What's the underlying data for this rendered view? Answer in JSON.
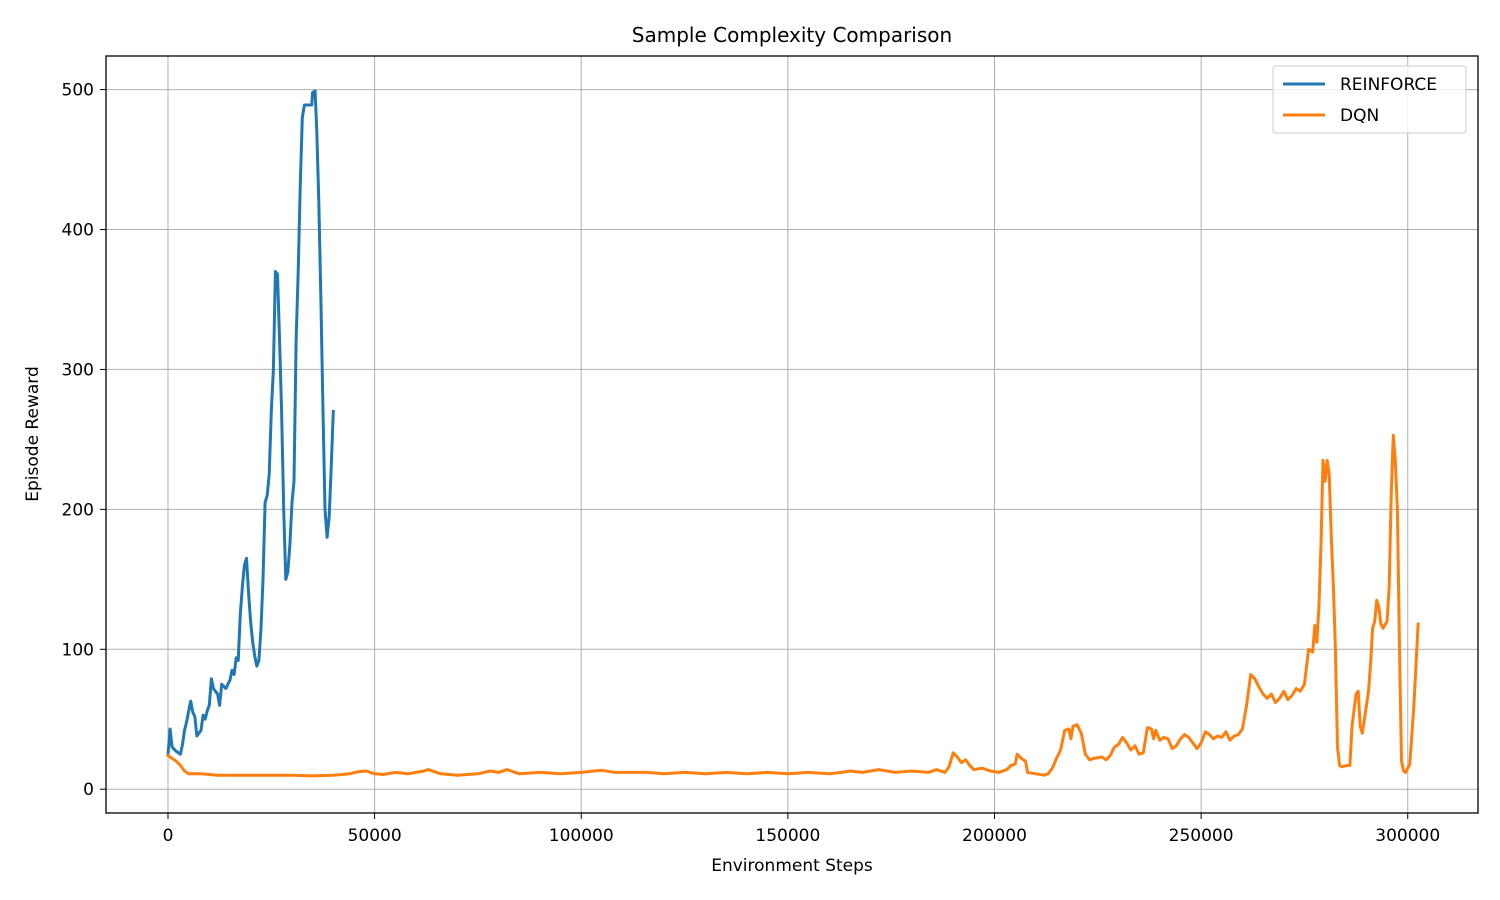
{
  "chart_data": {
    "type": "line",
    "title": "Sample Complexity Comparison",
    "xlabel": "Environment Steps",
    "ylabel": "Episode Reward",
    "xlim": [
      -15000,
      317000
    ],
    "ylim": [
      -17,
      524
    ],
    "xticks": [
      0,
      50000,
      100000,
      150000,
      200000,
      250000,
      300000
    ],
    "yticks": [
      0,
      100,
      200,
      300,
      400,
      500
    ],
    "grid": true,
    "legend_position": "top-right",
    "series": [
      {
        "name": "REINFORCE",
        "color": "#1f77b4",
        "points": [
          [
            0,
            25
          ],
          [
            500,
            43
          ],
          [
            1000,
            30
          ],
          [
            2000,
            27
          ],
          [
            3000,
            25
          ],
          [
            3500,
            32
          ],
          [
            4000,
            42
          ],
          [
            4500,
            48
          ],
          [
            5000,
            56
          ],
          [
            5500,
            63
          ],
          [
            6000,
            55
          ],
          [
            6500,
            52
          ],
          [
            7000,
            38
          ],
          [
            8000,
            42
          ],
          [
            8500,
            53
          ],
          [
            9000,
            50
          ],
          [
            9500,
            56
          ],
          [
            10000,
            60
          ],
          [
            10500,
            79
          ],
          [
            11000,
            72
          ],
          [
            11500,
            70
          ],
          [
            12000,
            68
          ],
          [
            12500,
            60
          ],
          [
            13000,
            75
          ],
          [
            14000,
            72
          ],
          [
            15000,
            78
          ],
          [
            15500,
            85
          ],
          [
            16000,
            82
          ],
          [
            16500,
            94
          ],
          [
            17000,
            92
          ],
          [
            17500,
            125
          ],
          [
            18000,
            145
          ],
          [
            18500,
            160
          ],
          [
            19000,
            165
          ],
          [
            19500,
            140
          ],
          [
            20000,
            120
          ],
          [
            20500,
            105
          ],
          [
            21000,
            95
          ],
          [
            21500,
            88
          ],
          [
            22000,
            92
          ],
          [
            22500,
            115
          ],
          [
            23000,
            150
          ],
          [
            23500,
            205
          ],
          [
            24000,
            210
          ],
          [
            24500,
            225
          ],
          [
            25000,
            270
          ],
          [
            25500,
            300
          ],
          [
            26000,
            370
          ],
          [
            26500,
            368
          ],
          [
            27000,
            320
          ],
          [
            27500,
            270
          ],
          [
            28000,
            200
          ],
          [
            28500,
            150
          ],
          [
            29000,
            155
          ],
          [
            29500,
            175
          ],
          [
            30000,
            205
          ],
          [
            30500,
            220
          ],
          [
            31000,
            320
          ],
          [
            31500,
            370
          ],
          [
            32000,
            430
          ],
          [
            32500,
            480
          ],
          [
            33000,
            489
          ],
          [
            34000,
            489
          ],
          [
            34800,
            489
          ],
          [
            35000,
            498
          ],
          [
            35600,
            499
          ],
          [
            36000,
            470
          ],
          [
            36500,
            420
          ],
          [
            37000,
            350
          ],
          [
            37500,
            270
          ],
          [
            38000,
            200
          ],
          [
            38500,
            180
          ],
          [
            39000,
            195
          ],
          [
            39500,
            230
          ],
          [
            40000,
            270
          ]
        ]
      },
      {
        "name": "DQN",
        "color": "#ff7f0e",
        "points": [
          [
            0,
            24
          ],
          [
            2000,
            20
          ],
          [
            3000,
            17
          ],
          [
            4000,
            13
          ],
          [
            5000,
            11
          ],
          [
            8000,
            11
          ],
          [
            12000,
            10
          ],
          [
            15000,
            10
          ],
          [
            20000,
            10
          ],
          [
            25000,
            10
          ],
          [
            30000,
            10
          ],
          [
            35000,
            9.5
          ],
          [
            40000,
            10
          ],
          [
            42000,
            10.5
          ],
          [
            44000,
            11
          ],
          [
            46000,
            12.5
          ],
          [
            48000,
            13
          ],
          [
            50000,
            11
          ],
          [
            52000,
            10.5
          ],
          [
            55000,
            12
          ],
          [
            58000,
            11
          ],
          [
            60000,
            12
          ],
          [
            62000,
            13
          ],
          [
            63000,
            14
          ],
          [
            64000,
            13
          ],
          [
            66000,
            11
          ],
          [
            70000,
            10
          ],
          [
            75000,
            11
          ],
          [
            78000,
            13
          ],
          [
            80000,
            12
          ],
          [
            82000,
            14
          ],
          [
            85000,
            11
          ],
          [
            90000,
            12
          ],
          [
            95000,
            11
          ],
          [
            100000,
            12
          ],
          [
            103000,
            13
          ],
          [
            105000,
            13.5
          ],
          [
            108000,
            12
          ],
          [
            112000,
            12
          ],
          [
            116000,
            12
          ],
          [
            120000,
            11
          ],
          [
            125000,
            12
          ],
          [
            130000,
            11
          ],
          [
            135000,
            12
          ],
          [
            140000,
            11
          ],
          [
            145000,
            12
          ],
          [
            150000,
            11
          ],
          [
            155000,
            12
          ],
          [
            160000,
            11
          ],
          [
            163000,
            12
          ],
          [
            165000,
            13
          ],
          [
            168000,
            12
          ],
          [
            172000,
            14
          ],
          [
            176000,
            12
          ],
          [
            180000,
            13
          ],
          [
            184000,
            12
          ],
          [
            186000,
            14
          ],
          [
            188000,
            12
          ],
          [
            189000,
            16
          ],
          [
            190000,
            26
          ],
          [
            191000,
            23
          ],
          [
            192000,
            19
          ],
          [
            193000,
            21
          ],
          [
            194000,
            17
          ],
          [
            195000,
            14
          ],
          [
            197000,
            15
          ],
          [
            199000,
            13
          ],
          [
            201000,
            12
          ],
          [
            203000,
            14
          ],
          [
            204000,
            17
          ],
          [
            205000,
            18
          ],
          [
            205500,
            25
          ],
          [
            206500,
            22
          ],
          [
            207500,
            20
          ],
          [
            208000,
            12
          ],
          [
            210000,
            11
          ],
          [
            212000,
            10
          ],
          [
            213000,
            11
          ],
          [
            214000,
            15
          ],
          [
            215000,
            22
          ],
          [
            216000,
            28
          ],
          [
            217000,
            42
          ],
          [
            218000,
            43
          ],
          [
            218500,
            36
          ],
          [
            219000,
            45
          ],
          [
            220000,
            46
          ],
          [
            221000,
            40
          ],
          [
            222000,
            25
          ],
          [
            223000,
            21
          ],
          [
            224000,
            22
          ],
          [
            226000,
            23
          ],
          [
            227000,
            21
          ],
          [
            228000,
            24
          ],
          [
            229000,
            30
          ],
          [
            230000,
            32
          ],
          [
            231000,
            37
          ],
          [
            232000,
            33
          ],
          [
            233000,
            28
          ],
          [
            234000,
            31
          ],
          [
            235000,
            25
          ],
          [
            236000,
            26
          ],
          [
            237000,
            44
          ],
          [
            238000,
            43
          ],
          [
            238500,
            36
          ],
          [
            239000,
            42
          ],
          [
            240000,
            35
          ],
          [
            241000,
            37
          ],
          [
            242000,
            36
          ],
          [
            243000,
            29
          ],
          [
            244000,
            31
          ],
          [
            245000,
            36
          ],
          [
            246000,
            39
          ],
          [
            247000,
            37
          ],
          [
            248000,
            33
          ],
          [
            249000,
            29
          ],
          [
            250000,
            33
          ],
          [
            251000,
            41
          ],
          [
            252000,
            39
          ],
          [
            253000,
            36
          ],
          [
            254000,
            38
          ],
          [
            255000,
            37
          ],
          [
            256000,
            41
          ],
          [
            257000,
            35
          ],
          [
            258000,
            38
          ],
          [
            259000,
            39
          ],
          [
            260000,
            43
          ],
          [
            261000,
            60
          ],
          [
            262000,
            82
          ],
          [
            263000,
            79
          ],
          [
            264000,
            73
          ],
          [
            265000,
            68
          ],
          [
            266000,
            65
          ],
          [
            267000,
            68
          ],
          [
            268000,
            62
          ],
          [
            269000,
            65
          ],
          [
            270000,
            70
          ],
          [
            271000,
            64
          ],
          [
            272000,
            67
          ],
          [
            273000,
            72
          ],
          [
            274000,
            70
          ],
          [
            275000,
            75
          ],
          [
            276000,
            100
          ],
          [
            277000,
            98
          ],
          [
            277500,
            117
          ],
          [
            278000,
            105
          ],
          [
            278500,
            130
          ],
          [
            279000,
            175
          ],
          [
            279500,
            235
          ],
          [
            280000,
            220
          ],
          [
            280500,
            235
          ],
          [
            281000,
            225
          ],
          [
            281500,
            180
          ],
          [
            282000,
            145
          ],
          [
            282500,
            100
          ],
          [
            283000,
            30
          ],
          [
            283500,
            17
          ],
          [
            284000,
            16
          ],
          [
            285500,
            17
          ],
          [
            286000,
            17
          ],
          [
            286500,
            45
          ],
          [
            287500,
            68
          ],
          [
            288000,
            70
          ],
          [
            288500,
            45
          ],
          [
            289000,
            40
          ],
          [
            289500,
            50
          ],
          [
            290500,
            70
          ],
          [
            291000,
            90
          ],
          [
            291500,
            115
          ],
          [
            292000,
            120
          ],
          [
            292500,
            135
          ],
          [
            293000,
            130
          ],
          [
            293500,
            118
          ],
          [
            294000,
            115
          ],
          [
            295000,
            120
          ],
          [
            295500,
            145
          ],
          [
            296000,
            210
          ],
          [
            296500,
            253
          ],
          [
            297000,
            235
          ],
          [
            297500,
            200
          ],
          [
            298000,
            100
          ],
          [
            298500,
            20
          ],
          [
            299000,
            13
          ],
          [
            299500,
            12
          ],
          [
            300500,
            18
          ],
          [
            301500,
            60
          ],
          [
            302500,
            118
          ]
        ]
      }
    ]
  }
}
